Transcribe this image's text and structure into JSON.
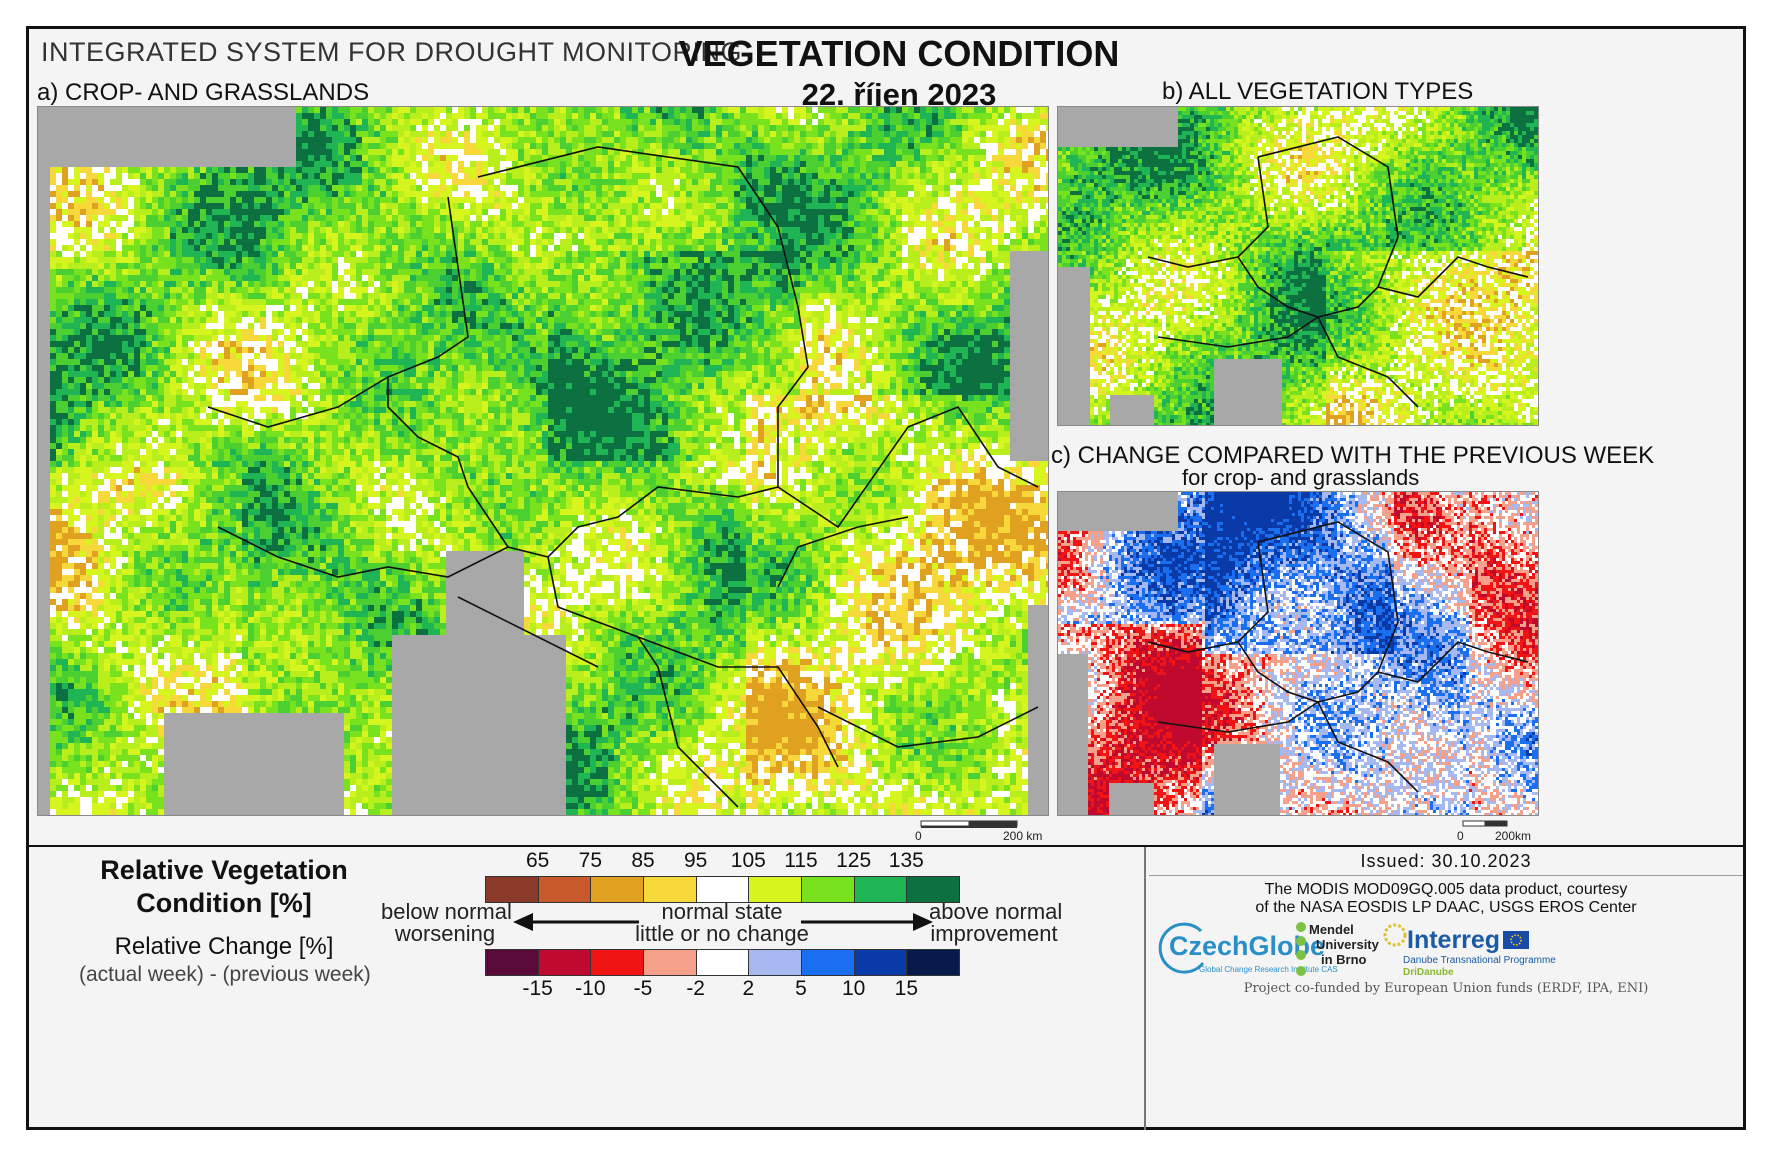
{
  "header": {
    "system": "INTEGRATED SYSTEM FOR DROUGHT MONITORING",
    "title": "VEGETATION CONDITION",
    "date": "22. říjen 2023"
  },
  "panels": {
    "a": "a) CROP- AND GRASSLANDS",
    "b": "b) ALL VEGETATION TYPES",
    "c_line1": "c) CHANGE COMPARED WITH THE PREVIOUS WEEK",
    "c_line2": "for crop- and grasslands"
  },
  "scalebars": {
    "main_zero": "0",
    "main_end": "200 km",
    "small_zero": "0",
    "small_end": "200km"
  },
  "legend": {
    "title_line1": "Relative Vegetation",
    "title_line2": "Condition [%]",
    "change_line1": "Relative Change [%]",
    "change_line2": "(actual week) - (previous week)",
    "rvc_ticks": [
      "65",
      "75",
      "85",
      "95",
      "105",
      "115",
      "125",
      "135"
    ],
    "rvc_colors": [
      "#8b3a2a",
      "#c8592a",
      "#e0a020",
      "#f7d83a",
      "#ffffff",
      "#d6f51f",
      "#78e21e",
      "#1fb554",
      "#0c7040"
    ],
    "change_ticks": [
      "-15",
      "-10",
      "-5",
      "-2",
      "2",
      "5",
      "10",
      "15"
    ],
    "change_colors": [
      "#5a0a3a",
      "#c0092e",
      "#f01414",
      "#f5a08a",
      "#ffffff",
      "#a5b8f0",
      "#1a6ef0",
      "#0a3aa8",
      "#081a4a"
    ],
    "left_top": "below normal",
    "left_bottom": "worsening",
    "mid_top": "normal state",
    "mid_bottom": "little or no change",
    "right_top": "above normal",
    "right_bottom": "improvement"
  },
  "info": {
    "issued": "Issued: 30.10.2023",
    "credit_line1": "The MODIS MOD09GQ.005 data product, courtesy",
    "credit_line2": "of the NASA EOSDIS LP DAAC, USGS EROS Center",
    "czechglobe": "CzechGlobe",
    "czechglobe_sub": "Global Change Research Institute CAS",
    "mendel_1": "Mendel",
    "mendel_2": "University",
    "mendel_3": "in Brno",
    "interreg": "Interreg",
    "interreg_sub": "Danube Transnational Programme",
    "dridanube": "DriDanube",
    "cofunded": "Project co-funded by European Union funds (ERDF, IPA, ENI)"
  },
  "colors": {
    "sea": "#a8a8a8",
    "border": "#111111"
  }
}
